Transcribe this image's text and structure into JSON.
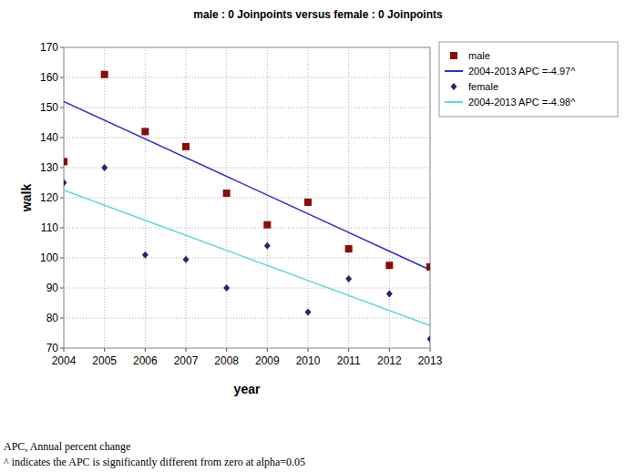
{
  "chart_data": {
    "type": "scatter",
    "title": "male : 0 Joinpoints  versus  female : 0 Joinpoints",
    "x_label": "year",
    "y_label": "walk",
    "xlim": [
      2004,
      2013
    ],
    "ylim": [
      70,
      170
    ],
    "xticks": [
      2004,
      2005,
      2006,
      2007,
      2008,
      2009,
      2010,
      2011,
      2012,
      2013
    ],
    "yticks": [
      70,
      80,
      90,
      100,
      110,
      120,
      130,
      140,
      150,
      160,
      170
    ],
    "grid": true,
    "legend": "right",
    "annotations": [
      "APC, Annual percent change",
      "^ indicates the APC is significantly different from zero at alpha=0.05"
    ],
    "series": [
      {
        "name": "male",
        "type": "scatter",
        "marker": "square",
        "color": "#8b0a0a",
        "x": [
          2004,
          2005,
          2006,
          2007,
          2008,
          2009,
          2010,
          2011,
          2012,
          2013
        ],
        "values": [
          132,
          161,
          142,
          137,
          121.5,
          111,
          118.5,
          103,
          97.5,
          97
        ]
      },
      {
        "name": "2004-2013 APC =-4.97^",
        "type": "line",
        "line_style": "solid",
        "color": "#3030cc",
        "x": [
          2004,
          2013
        ],
        "values": [
          152,
          96
        ]
      },
      {
        "name": "female",
        "type": "scatter",
        "marker": "diamond",
        "color": "#3a1a78",
        "x": [
          2004,
          2005,
          2006,
          2007,
          2008,
          2009,
          2010,
          2011,
          2012,
          2013
        ],
        "values": [
          125,
          130,
          101,
          99.5,
          90,
          104,
          82,
          93,
          88,
          73
        ]
      },
      {
        "name": "2004-2013 APC =-4.98^",
        "type": "line",
        "line_style": "solid",
        "color": "#5fd8d8",
        "x": [
          2004,
          2013
        ],
        "values": [
          122.5,
          77.5
        ]
      }
    ]
  }
}
